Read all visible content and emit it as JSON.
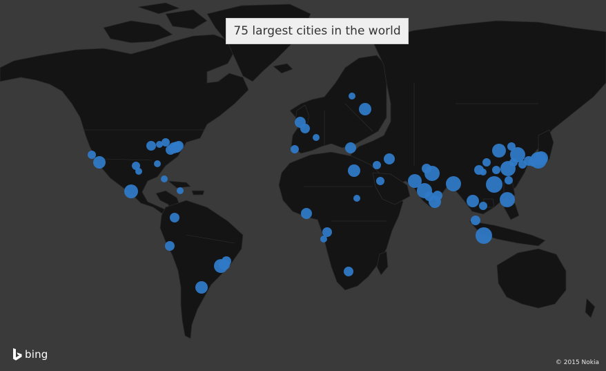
{
  "map": {
    "title": "75 largest cities in the world",
    "ocean_color": "#3a3a3a",
    "land_color": "#141414",
    "marker_color": "#2f79c6",
    "logo_label": "bing",
    "logo_icon": "bing-b-icon",
    "copyright": "© 2015 Nokia",
    "city_marker_count": 75
  }
}
